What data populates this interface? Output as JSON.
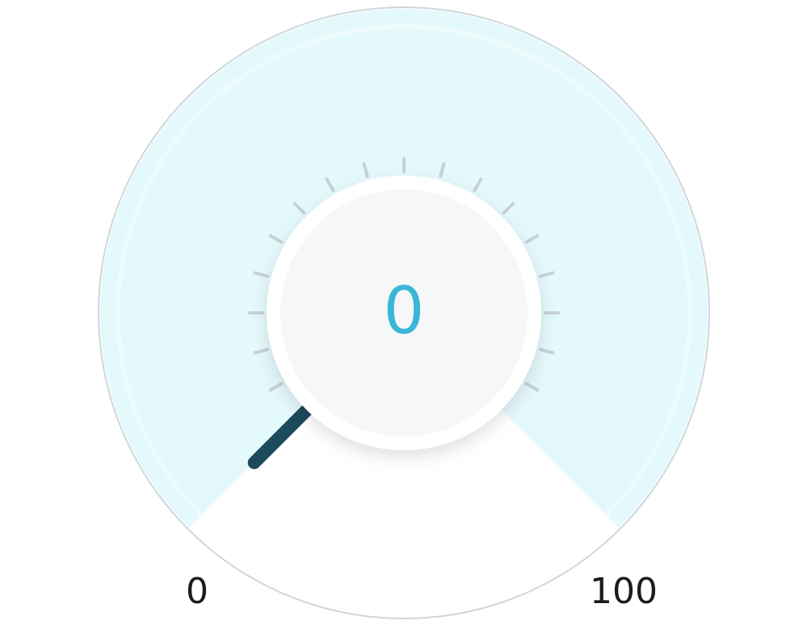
{
  "gauge": {
    "value": 0,
    "min": 0,
    "max": 100,
    "value_text": "0",
    "min_label": "0",
    "max_label": "100",
    "tick_count": 17,
    "colors": {
      "face": "#e4f9fc",
      "face_edge": "#cfd6da",
      "knob": "#ffffff",
      "knob_inner": "#f6f7f9",
      "tick": "#c7d2d6",
      "needle": "#1d4a5b",
      "readout": "#3ab6d6"
    },
    "icons": {
      "needle": "gauge-needle",
      "knob": "dial-knob"
    }
  }
}
